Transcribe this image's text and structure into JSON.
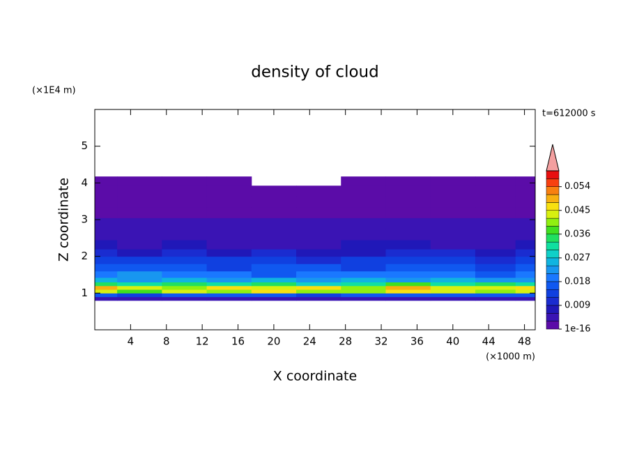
{
  "chart_data": {
    "type": "contour",
    "title": "density of cloud",
    "x_label": "X coordinate",
    "y_label": "Z coordinate",
    "x_unit": "(×1000 m)",
    "y_unit": "(×1E4 m)",
    "time_label": "t=612000 s",
    "xlim": [
      0,
      49.2
    ],
    "ylim": [
      0,
      6
    ],
    "xticks": [
      4,
      8,
      12,
      16,
      20,
      24,
      28,
      32,
      36,
      40,
      44,
      48
    ],
    "yticks": [
      1,
      2,
      3,
      4,
      5
    ],
    "x": [
      0,
      5,
      10,
      15,
      20,
      25,
      30,
      35,
      40,
      45,
      49
    ],
    "z": [
      0.85,
      0.95,
      1.05,
      1.15,
      1.25,
      1.35,
      1.5,
      1.7,
      1.9,
      2.1,
      2.3,
      2.6,
      2.9,
      3.2,
      3.5,
      3.8,
      4.05
    ],
    "values": [
      [
        0.004,
        0.005,
        0.004,
        0.005,
        0.004,
        0.005,
        0.004,
        0.005,
        0.004,
        0.005,
        0.004
      ],
      [
        0.016,
        0.014,
        0.017,
        0.015,
        0.016,
        0.014,
        0.015,
        0.017,
        0.016,
        0.015,
        0.016
      ],
      [
        0.042,
        0.038,
        0.044,
        0.04,
        0.046,
        0.039,
        0.041,
        0.045,
        0.043,
        0.04,
        0.044
      ],
      [
        0.048,
        0.044,
        0.041,
        0.047,
        0.043,
        0.045,
        0.04,
        0.049,
        0.044,
        0.042,
        0.046
      ],
      [
        0.033,
        0.03,
        0.035,
        0.031,
        0.034,
        0.029,
        0.032,
        0.036,
        0.03,
        0.033,
        0.031
      ],
      [
        0.024,
        0.022,
        0.026,
        0.023,
        0.025,
        0.021,
        0.024,
        0.022,
        0.025,
        0.023,
        0.022
      ],
      [
        0.019,
        0.021,
        0.018,
        0.02,
        0.017,
        0.019,
        0.018,
        0.02,
        0.019,
        0.017,
        0.018
      ],
      [
        0.016,
        0.015,
        0.017,
        0.014,
        0.016,
        0.015,
        0.013,
        0.016,
        0.015,
        0.014,
        0.016
      ],
      [
        0.013,
        0.012,
        0.014,
        0.012,
        0.013,
        0.011,
        0.012,
        0.013,
        0.012,
        0.011,
        0.013
      ],
      [
        0.009,
        0.008,
        0.01,
        0.008,
        0.009,
        0.007,
        0.008,
        0.01,
        0.009,
        0.008,
        0.009
      ],
      [
        0.006,
        0.005,
        0.006,
        0.005,
        0.005,
        0.005,
        0.006,
        0.006,
        0.005,
        0.005,
        0.006
      ],
      [
        0.004,
        0.004,
        0.005,
        0.004,
        0.004,
        0.004,
        0.004,
        0.005,
        0.004,
        0.004,
        0.004
      ],
      [
        0.003,
        0.003,
        0.003,
        0.003,
        0.004,
        0.003,
        0.003,
        0.003,
        0.003,
        0.003,
        0.003
      ],
      [
        0.002,
        0.002,
        0.002,
        0.002,
        0.002,
        0.002,
        0.002,
        0.002,
        0.002,
        0.002,
        0.002
      ],
      [
        0.001,
        0.001,
        0.001,
        0.001,
        0.001,
        0.001,
        0.001,
        0.001,
        0.001,
        0.001,
        0.001
      ],
      [
        0.001,
        0.001,
        0.001,
        0.001,
        0.001,
        0.001,
        0.001,
        0.001,
        0.001,
        0.001,
        0.001
      ],
      [
        0.0005,
        0.0005,
        0.0005,
        0.0005,
        null,
        null,
        0.0005,
        0.0005,
        0.0005,
        0.0005,
        0.0005
      ]
    ],
    "levels": [
      0,
      0.003,
      0.006,
      0.009,
      0.012,
      0.015,
      0.018,
      0.021,
      0.024,
      0.027,
      0.03,
      0.033,
      0.036,
      0.039,
      0.042,
      0.045,
      0.048,
      0.051,
      0.054,
      0.057,
      0.06
    ],
    "colors": [
      "#5b0ca8",
      "#3a14b4",
      "#2018b8",
      "#1a2cd0",
      "#1040e0",
      "#1058f0",
      "#1a78ff",
      "#1896f0",
      "#10b4e0",
      "#10d0c8",
      "#10e0a0",
      "#20e060",
      "#40e020",
      "#90f010",
      "#d8f010",
      "#f8e010",
      "#f8b010",
      "#f88010",
      "#f84010",
      "#e81010"
    ],
    "over_color": "#f4a0a0",
    "colorbar_ticks": [
      {
        "value": 1e-16,
        "label": "1e-16"
      },
      0.009,
      0.018,
      0.027,
      0.036,
      0.045,
      0.054
    ]
  }
}
